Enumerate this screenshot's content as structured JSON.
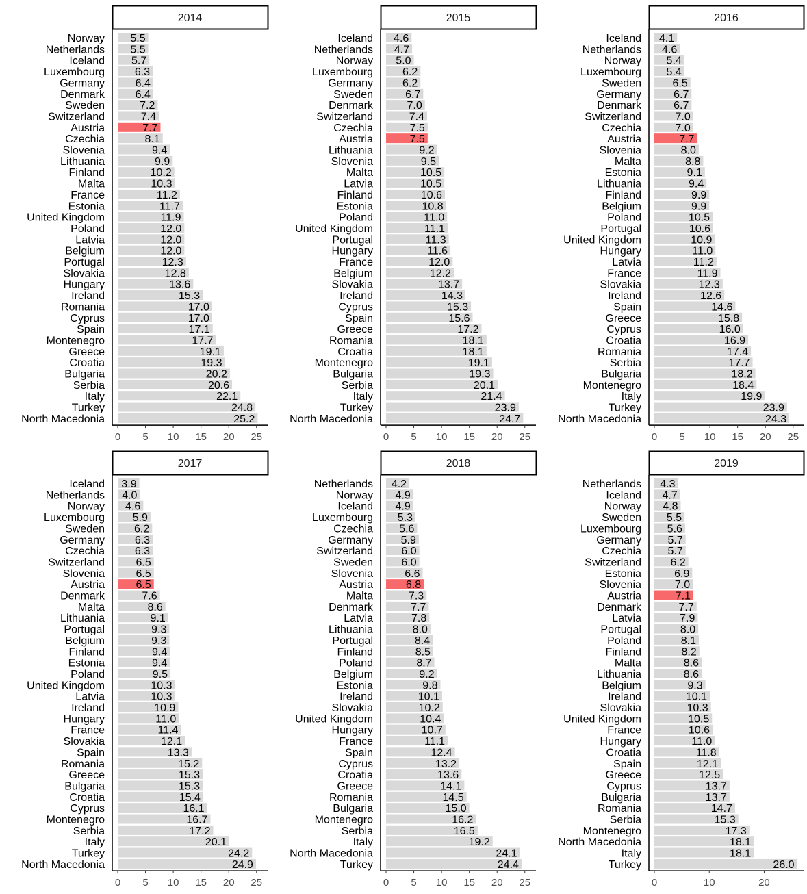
{
  "colors": {
    "bar": "#d9d9d9",
    "highlight": "#f8696b",
    "highlight_country": "Austria",
    "text": "#000000",
    "axis_text": "#4d4d4d",
    "strip_border": "#000000"
  },
  "chart_data": [
    {
      "type": "bar",
      "orientation": "horizontal",
      "title": "2014",
      "xlim": [
        0,
        27
      ],
      "xticks": [
        0,
        5,
        10,
        15,
        20,
        25
      ],
      "categories": [
        "Norway",
        "Netherlands",
        "Iceland",
        "Luxembourg",
        "Germany",
        "Denmark",
        "Sweden",
        "Switzerland",
        "Austria",
        "Czechia",
        "Slovenia",
        "Lithuania",
        "Finland",
        "Malta",
        "France",
        "Estonia",
        "United Kingdom",
        "Poland",
        "Latvia",
        "Belgium",
        "Portugal",
        "Slovakia",
        "Hungary",
        "Ireland",
        "Romania",
        "Cyprus",
        "Spain",
        "Montenegro",
        "Greece",
        "Croatia",
        "Bulgaria",
        "Serbia",
        "Italy",
        "Turkey",
        "North Macedonia"
      ],
      "values": [
        5.5,
        5.5,
        5.7,
        6.3,
        6.4,
        6.4,
        7.2,
        7.4,
        7.7,
        8.1,
        9.4,
        9.9,
        10.2,
        10.3,
        11.2,
        11.7,
        11.9,
        12.0,
        12.0,
        12.0,
        12.3,
        12.8,
        13.6,
        15.3,
        17.0,
        17.0,
        17.1,
        17.7,
        19.1,
        19.3,
        20.2,
        20.6,
        22.1,
        24.8,
        25.2
      ]
    },
    {
      "type": "bar",
      "orientation": "horizontal",
      "title": "2015",
      "xlim": [
        0,
        27
      ],
      "xticks": [
        0,
        5,
        10,
        15,
        20,
        25
      ],
      "categories": [
        "Iceland",
        "Netherlands",
        "Norway",
        "Luxembourg",
        "Germany",
        "Sweden",
        "Denmark",
        "Switzerland",
        "Czechia",
        "Austria",
        "Lithuania",
        "Slovenia",
        "Malta",
        "Latvia",
        "Finland",
        "Estonia",
        "Poland",
        "United Kingdom",
        "Portugal",
        "Hungary",
        "France",
        "Belgium",
        "Slovakia",
        "Ireland",
        "Cyprus",
        "Spain",
        "Greece",
        "Romania",
        "Croatia",
        "Montenegro",
        "Bulgaria",
        "Serbia",
        "Italy",
        "Turkey",
        "North Macedonia"
      ],
      "values": [
        4.6,
        4.7,
        5.0,
        6.2,
        6.2,
        6.7,
        7.0,
        7.4,
        7.5,
        7.5,
        9.2,
        9.5,
        10.5,
        10.5,
        10.6,
        10.8,
        11.0,
        11.1,
        11.3,
        11.6,
        12.0,
        12.2,
        13.7,
        14.3,
        15.3,
        15.6,
        17.2,
        18.1,
        18.1,
        19.1,
        19.3,
        20.1,
        21.4,
        23.9,
        24.7
      ]
    },
    {
      "type": "bar",
      "orientation": "horizontal",
      "title": "2016",
      "xlim": [
        0,
        27
      ],
      "xticks": [
        0,
        5,
        10,
        15,
        20,
        25
      ],
      "categories": [
        "Iceland",
        "Netherlands",
        "Norway",
        "Luxembourg",
        "Sweden",
        "Germany",
        "Denmark",
        "Switzerland",
        "Czechia",
        "Austria",
        "Slovenia",
        "Malta",
        "Estonia",
        "Lithuania",
        "Finland",
        "Belgium",
        "Poland",
        "Portugal",
        "United Kingdom",
        "Hungary",
        "Latvia",
        "France",
        "Slovakia",
        "Ireland",
        "Spain",
        "Greece",
        "Cyprus",
        "Croatia",
        "Romania",
        "Serbia",
        "Bulgaria",
        "Montenegro",
        "Italy",
        "Turkey",
        "North Macedonia"
      ],
      "values": [
        4.1,
        4.6,
        5.4,
        5.4,
        6.5,
        6.7,
        6.7,
        7.0,
        7.0,
        7.7,
        8.0,
        8.8,
        9.1,
        9.4,
        9.9,
        9.9,
        10.5,
        10.6,
        10.9,
        11.0,
        11.2,
        11.9,
        12.3,
        12.6,
        14.6,
        15.8,
        16.0,
        16.9,
        17.4,
        17.7,
        18.2,
        18.4,
        19.9,
        23.9,
        24.3
      ]
    },
    {
      "type": "bar",
      "orientation": "horizontal",
      "title": "2017",
      "xlim": [
        0,
        27
      ],
      "xticks": [
        0,
        5,
        10,
        15,
        20,
        25
      ],
      "categories": [
        "Iceland",
        "Netherlands",
        "Norway",
        "Luxembourg",
        "Sweden",
        "Germany",
        "Czechia",
        "Switzerland",
        "Slovenia",
        "Austria",
        "Denmark",
        "Malta",
        "Lithuania",
        "Portugal",
        "Belgium",
        "Finland",
        "Estonia",
        "Poland",
        "United Kingdom",
        "Latvia",
        "Ireland",
        "Hungary",
        "France",
        "Slovakia",
        "Spain",
        "Romania",
        "Greece",
        "Bulgaria",
        "Croatia",
        "Cyprus",
        "Montenegro",
        "Serbia",
        "Italy",
        "Turkey",
        "North Macedonia"
      ],
      "values": [
        3.9,
        4.0,
        4.6,
        5.9,
        6.2,
        6.3,
        6.3,
        6.5,
        6.5,
        6.5,
        7.6,
        8.6,
        9.1,
        9.3,
        9.3,
        9.4,
        9.4,
        9.5,
        10.3,
        10.3,
        10.9,
        11.0,
        11.4,
        12.1,
        13.3,
        15.2,
        15.3,
        15.3,
        15.4,
        16.1,
        16.7,
        17.2,
        20.1,
        24.2,
        24.9
      ]
    },
    {
      "type": "bar",
      "orientation": "horizontal",
      "title": "2018",
      "xlim": [
        0,
        27
      ],
      "xticks": [
        0,
        5,
        10,
        15,
        20,
        25
      ],
      "categories": [
        "Netherlands",
        "Norway",
        "Iceland",
        "Luxembourg",
        "Czechia",
        "Germany",
        "Switzerland",
        "Sweden",
        "Slovenia",
        "Austria",
        "Malta",
        "Denmark",
        "Latvia",
        "Lithuania",
        "Portugal",
        "Finland",
        "Poland",
        "Belgium",
        "Estonia",
        "Ireland",
        "Slovakia",
        "United Kingdom",
        "Hungary",
        "France",
        "Spain",
        "Cyprus",
        "Croatia",
        "Greece",
        "Romania",
        "Bulgaria",
        "Montenegro",
        "Serbia",
        "Italy",
        "North Macedonia",
        "Turkey"
      ],
      "values": [
        4.2,
        4.9,
        4.9,
        5.3,
        5.6,
        5.9,
        6.0,
        6.0,
        6.6,
        6.8,
        7.3,
        7.7,
        7.8,
        8.0,
        8.4,
        8.5,
        8.7,
        9.2,
        9.8,
        10.1,
        10.2,
        10.4,
        10.7,
        11.1,
        12.4,
        13.2,
        13.6,
        14.1,
        14.5,
        15.0,
        16.2,
        16.5,
        19.2,
        24.1,
        24.4
      ]
    },
    {
      "type": "bar",
      "orientation": "horizontal",
      "title": "2019",
      "xlim": [
        0,
        27.3
      ],
      "xticks": [
        0,
        10,
        20
      ],
      "categories": [
        "Netherlands",
        "Iceland",
        "Norway",
        "Sweden",
        "Luxembourg",
        "Germany",
        "Czechia",
        "Switzerland",
        "Estonia",
        "Slovenia",
        "Austria",
        "Denmark",
        "Latvia",
        "Portugal",
        "Poland",
        "Finland",
        "Malta",
        "Lithuania",
        "Belgium",
        "Ireland",
        "Slovakia",
        "United Kingdom",
        "France",
        "Hungary",
        "Croatia",
        "Spain",
        "Greece",
        "Cyprus",
        "Bulgaria",
        "Romania",
        "Serbia",
        "Montenegro",
        "North Macedonia",
        "Italy",
        "Turkey"
      ],
      "values": [
        4.3,
        4.7,
        4.8,
        5.5,
        5.6,
        5.7,
        5.7,
        6.2,
        6.9,
        7.0,
        7.1,
        7.7,
        7.9,
        8.0,
        8.1,
        8.2,
        8.6,
        8.6,
        9.3,
        10.1,
        10.3,
        10.5,
        10.6,
        11.0,
        11.8,
        12.1,
        12.5,
        13.7,
        13.7,
        14.7,
        15.3,
        17.3,
        18.1,
        18.1,
        26.0
      ]
    }
  ]
}
